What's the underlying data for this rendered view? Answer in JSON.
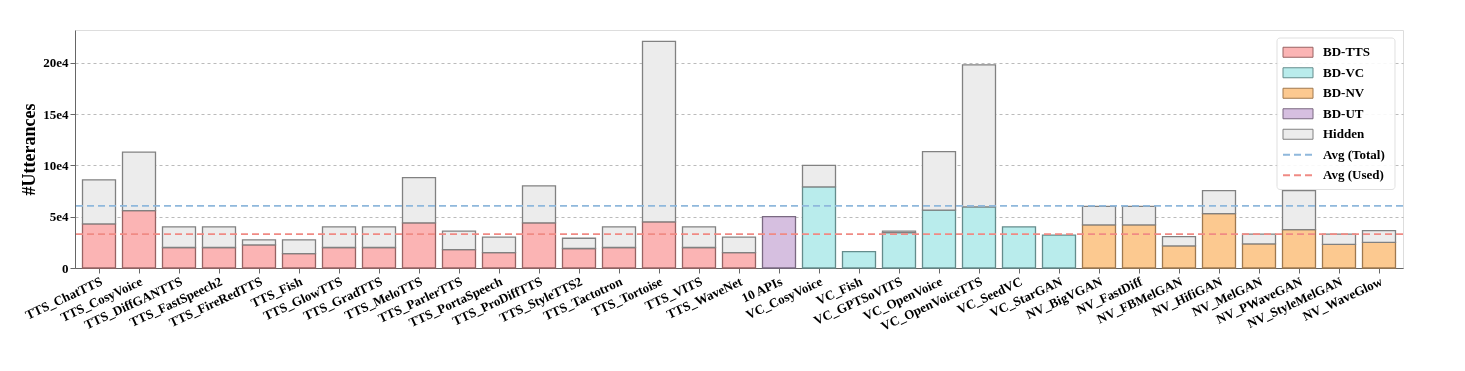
{
  "chart_data": {
    "type": "bar",
    "stacked": true,
    "ylabel": "#Utterances",
    "categories": [
      "TTS_ChatTTS",
      "TTS_CosyVoice",
      "TTS_DiffGANTTS",
      "TTS_FastSpeech2",
      "TTS_FireRedTTS",
      "TTS_Fish",
      "TTS_GlowTTS",
      "TTS_GradTTS",
      "TTS_MeloTTS",
      "TTS_ParlerTTS",
      "TTS_PortaSpeech",
      "TTS_ProDiffTTS",
      "TTS_StyleTTS2",
      "TTS_Tactotron",
      "TTS_Tortoise",
      "TTS_VITS",
      "TTS_WaveNet",
      "10 APIs",
      "VC_CosyVoice",
      "VC_Fish",
      "VC_GPTSoVITS",
      "VC_OpenVoice",
      "VC_OpenVoiceTTS",
      "VC_SeedVC",
      "VC_StarGAN",
      "NV_BigVGAN",
      "NV_FastDiff",
      "NV_FBMelGAN",
      "NV_HifiGAN",
      "NV_MelGAN",
      "NV_PWaveGAN",
      "NV_StyleMelGAN",
      "NV_WaveGlow"
    ],
    "series": [
      {
        "name": "BD-TTS",
        "color": "#fbb4b4",
        "values": [
          43000,
          56000,
          20000,
          20000,
          22500,
          14000,
          20000,
          20000,
          44000,
          18000,
          15000,
          44000,
          19000,
          20000,
          45000,
          20000,
          15000,
          null,
          null,
          null,
          null,
          null,
          null,
          null,
          null,
          null,
          null,
          null,
          null,
          null,
          null,
          null,
          null
        ]
      },
      {
        "name": "BD-VC",
        "color": "#b9ecec",
        "values": [
          null,
          null,
          null,
          null,
          null,
          null,
          null,
          null,
          null,
          null,
          null,
          null,
          null,
          null,
          null,
          null,
          null,
          null,
          79000,
          16000,
          34500,
          56500,
          59500,
          40000,
          32000,
          null,
          null,
          null,
          null,
          null,
          null,
          null,
          null
        ]
      },
      {
        "name": "BD-NV",
        "color": "#fcc990",
        "values": [
          null,
          null,
          null,
          null,
          null,
          null,
          null,
          null,
          null,
          null,
          null,
          null,
          null,
          null,
          null,
          null,
          null,
          null,
          null,
          null,
          null,
          null,
          null,
          null,
          null,
          42000,
          42000,
          21500,
          53000,
          23500,
          37500,
          23000,
          25000
        ]
      },
      {
        "name": "BD-UT",
        "color": "#d6bfe0",
        "values": [
          null,
          null,
          null,
          null,
          null,
          null,
          null,
          null,
          null,
          null,
          null,
          null,
          null,
          null,
          null,
          null,
          null,
          50000,
          null,
          null,
          null,
          null,
          null,
          null,
          null,
          null,
          null,
          null,
          null,
          null,
          null,
          null,
          null
        ]
      },
      {
        "name": "Hidden",
        "color": "#ececec",
        "values": [
          43000,
          57000,
          20000,
          20000,
          5000,
          13500,
          20000,
          20000,
          44000,
          18000,
          15000,
          36000,
          10000,
          20000,
          176000,
          20000,
          15000,
          null,
          21000,
          null,
          1500,
          57000,
          138500,
          null,
          null,
          18000,
          18000,
          9000,
          22500,
          9500,
          38000,
          10000,
          11500
        ]
      }
    ],
    "ylim": [
      0,
      232000
    ],
    "yticks": [
      0,
      {
        "value": 50000,
        "label": "5e4"
      },
      {
        "value": 100000,
        "label": "10e4"
      },
      {
        "value": 150000,
        "label": "15e4"
      },
      {
        "value": 200000,
        "label": "20e4"
      }
    ],
    "ref_lines": [
      {
        "axis": "y",
        "value": 60500,
        "label": "Avg (Total)",
        "color": "#8fb8dc",
        "line_style": "dashed"
      },
      {
        "axis": "y",
        "value": 33000,
        "label": "Avg (Used)",
        "color": "#f08a84",
        "line_style": "dashed"
      }
    ],
    "grid": "y",
    "legend": "top right"
  }
}
